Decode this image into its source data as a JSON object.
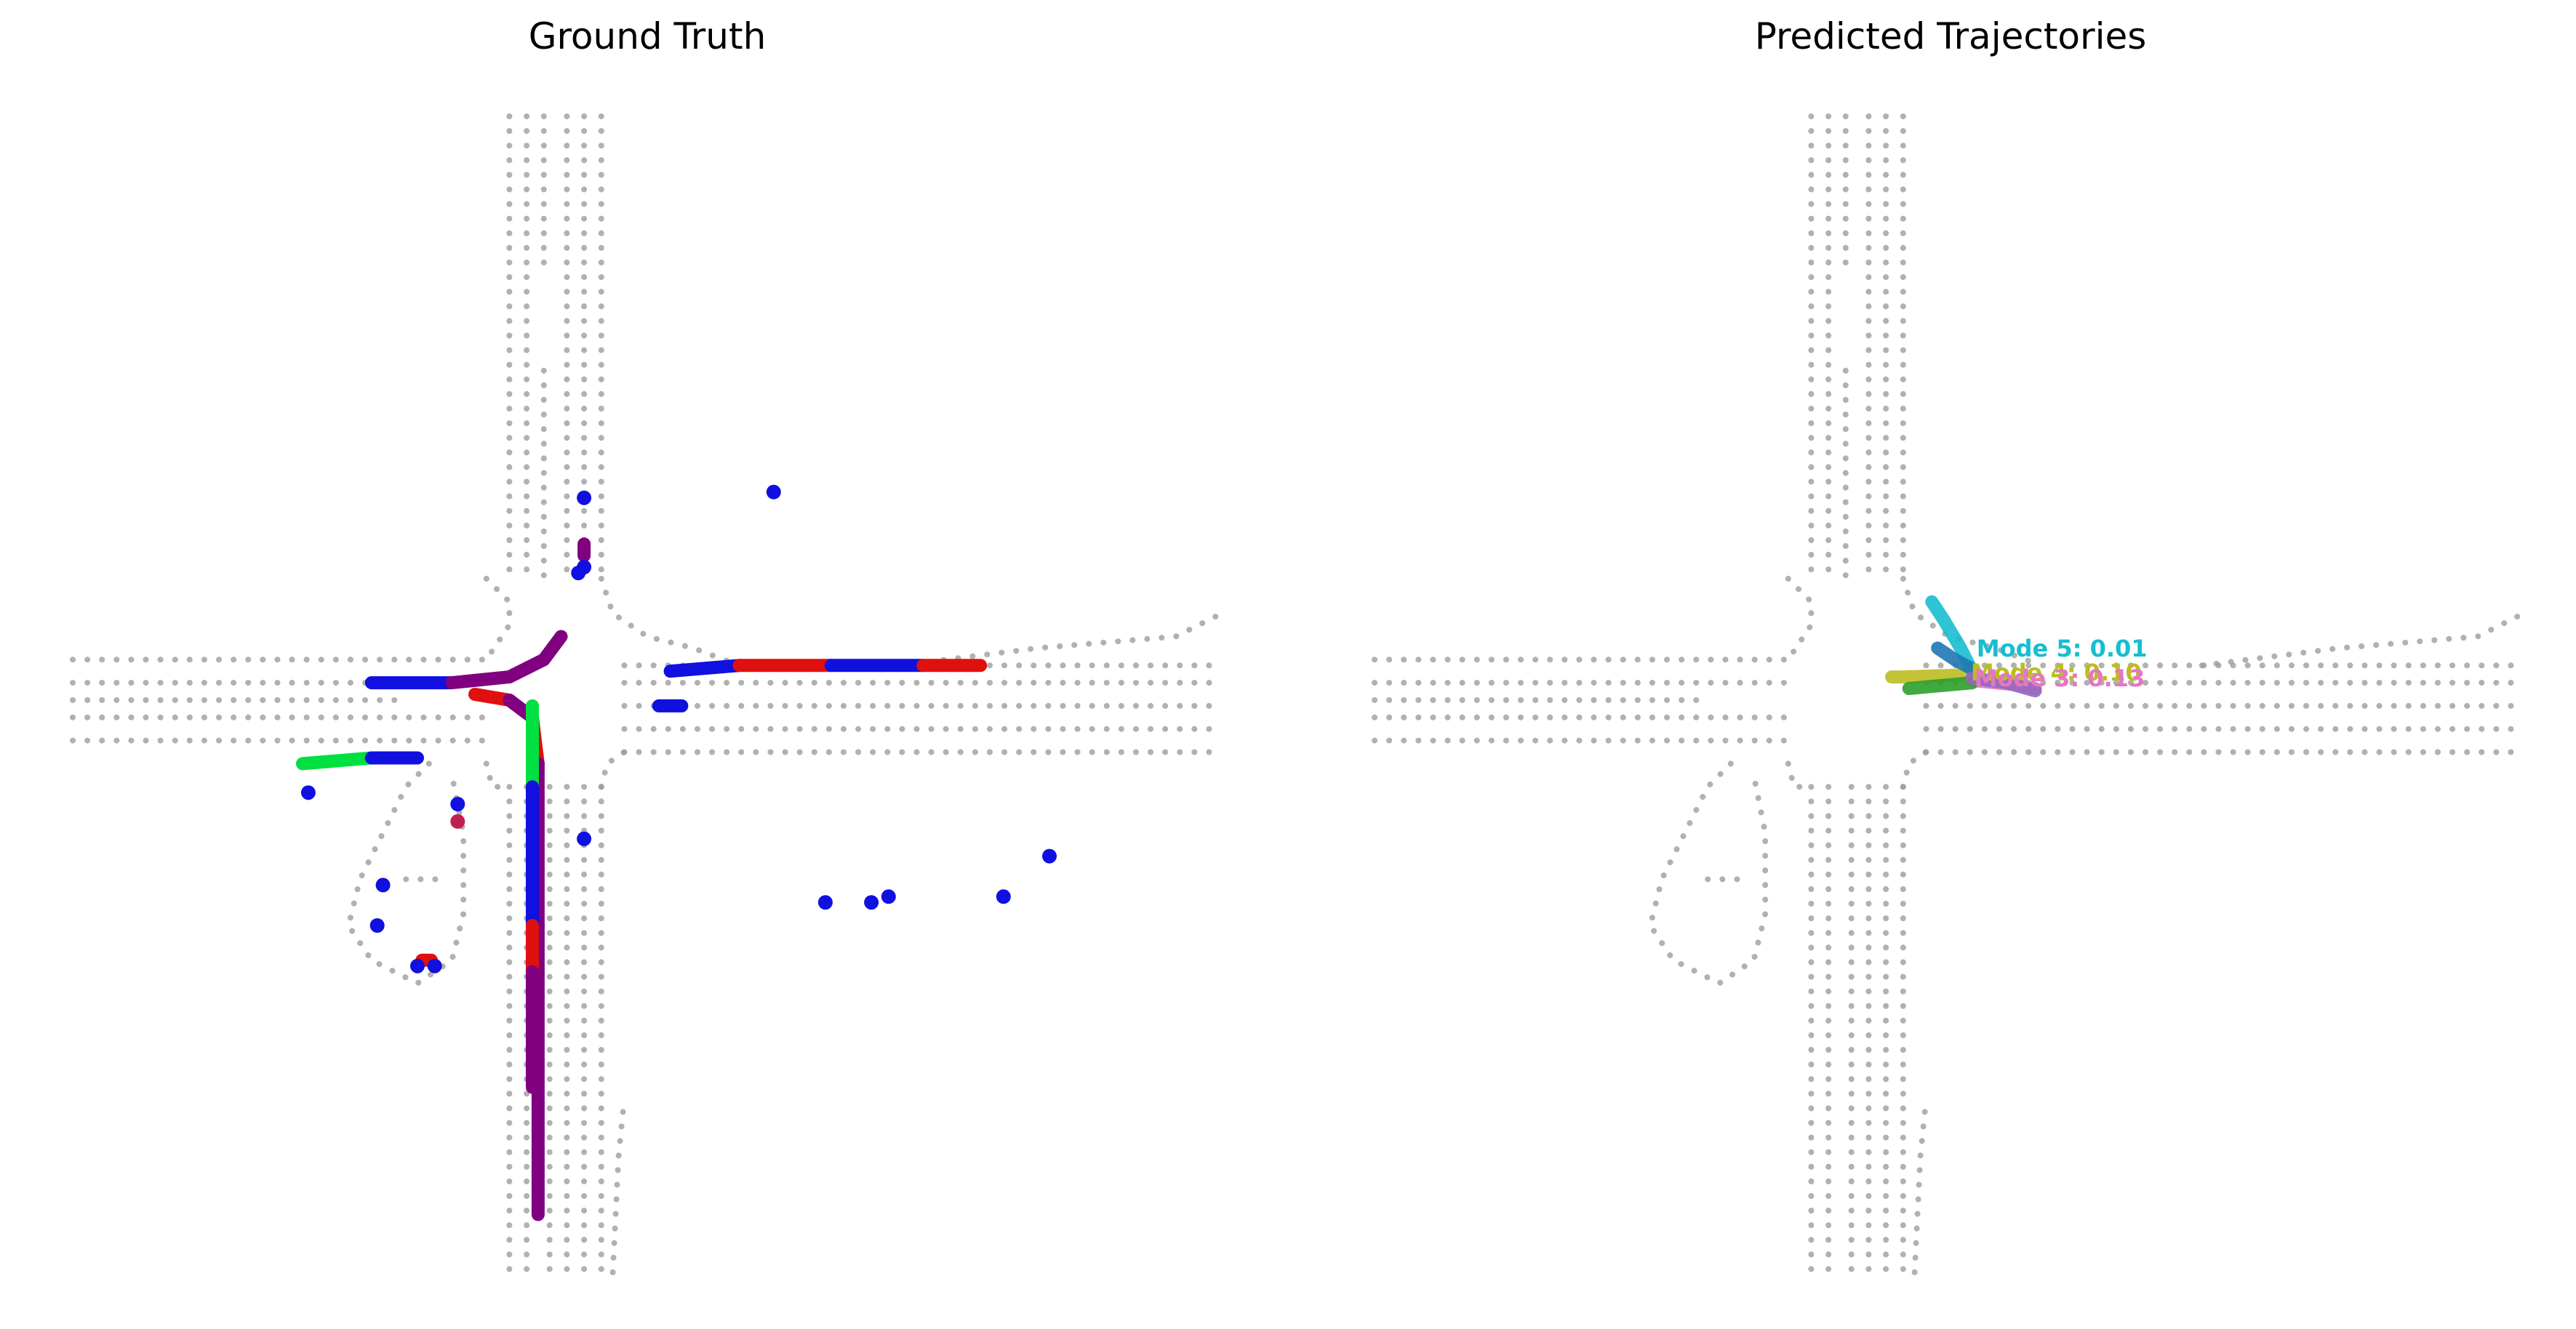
{
  "chart_data": [
    {
      "type": "scatter",
      "title": "Ground Truth",
      "xlabel": "",
      "ylabel": "",
      "axes_visible": false,
      "xlim": [
        0,
        100
      ],
      "ylim": [
        0,
        100
      ],
      "map_color": "#9e9e9e",
      "colormap": [
        "#00e040",
        "#1010e0",
        "#e01010",
        "#800080"
      ],
      "trajectories": [
        {
          "points": [
            [
              26,
              49
            ],
            [
              33,
              49
            ],
            [
              38,
              48.5
            ],
            [
              41,
              47
            ],
            [
              42.5,
              45
            ]
          ],
          "colors": [
            "#1010e0",
            "#800080"
          ]
        },
        {
          "points": [
            [
              35,
              50
            ],
            [
              38,
              50.5
            ],
            [
              40,
              52
            ],
            [
              40.5,
              56
            ],
            [
              40.5,
              70
            ],
            [
              40.5,
              95
            ]
          ],
          "colors": [
            "#e01010",
            "#800080",
            "#e01010",
            "#800080"
          ]
        },
        {
          "points": [
            [
              40,
              51
            ],
            [
              40,
              58
            ],
            [
              40,
              64
            ],
            [
              40,
              70
            ],
            [
              40,
              74
            ],
            [
              40,
              84
            ]
          ],
          "colors": [
            "#00e040",
            "#1010e0",
            "#1010e0",
            "#e01010",
            "#800080"
          ]
        },
        {
          "points": [
            [
              20,
              56
            ],
            [
              26,
              55.5
            ],
            [
              30,
              55.5
            ]
          ],
          "colors": [
            "#00e040",
            "#1010e0",
            "#e01010",
            "#1010e0"
          ]
        },
        {
          "points": [
            [
              52,
              48
            ],
            [
              58,
              47.5
            ],
            [
              66,
              47.5
            ],
            [
              74,
              47.5
            ],
            [
              79,
              47.5
            ]
          ],
          "colors": [
            "#1010e0",
            "#e01010",
            "#1010e0",
            "#e01010",
            "#00e040"
          ]
        },
        {
          "points": [
            [
              51,
              51
            ],
            [
              53,
              51
            ]
          ],
          "colors": [
            "#1010e0",
            "#00e040"
          ]
        },
        {
          "points": [
            [
              44.5,
              37
            ],
            [
              44.5,
              38
            ]
          ],
          "colors": [
            "#800080",
            "#800080"
          ]
        },
        {
          "points": [
            [
              30.4,
              73
            ],
            [
              31.2,
              73
            ]
          ],
          "colors": [
            "#e01010",
            "#00e040"
          ]
        }
      ],
      "points": [
        {
          "x": 44.5,
          "y": 33,
          "color": "#1010e0"
        },
        {
          "x": 61,
          "y": 32.5,
          "color": "#1010e0"
        },
        {
          "x": 44,
          "y": 39.5,
          "color": "#1010e0"
        },
        {
          "x": 44.5,
          "y": 39,
          "color": "#1010e0"
        },
        {
          "x": 20.5,
          "y": 58.5,
          "color": "#1010e0"
        },
        {
          "x": 33.5,
          "y": 59.5,
          "color": "#1010e0"
        },
        {
          "x": 33.5,
          "y": 61,
          "color": "#c02050"
        },
        {
          "x": 44.5,
          "y": 62.5,
          "color": "#1010e0"
        },
        {
          "x": 27,
          "y": 66.5,
          "color": "#1010e0"
        },
        {
          "x": 26.5,
          "y": 70,
          "color": "#1010e0"
        },
        {
          "x": 30,
          "y": 73.5,
          "color": "#1010e0"
        },
        {
          "x": 31.5,
          "y": 73.5,
          "color": "#1010e0"
        },
        {
          "x": 65.5,
          "y": 68,
          "color": "#1010e0"
        },
        {
          "x": 69.5,
          "y": 68,
          "color": "#1010e0"
        },
        {
          "x": 71,
          "y": 67.5,
          "color": "#1010e0"
        },
        {
          "x": 81,
          "y": 67.5,
          "color": "#1010e0"
        },
        {
          "x": 85,
          "y": 64,
          "color": "#1010e0"
        }
      ]
    },
    {
      "type": "line",
      "title": "Predicted Trajectories",
      "xlabel": "",
      "ylabel": "",
      "axes_visible": false,
      "xlim": [
        0,
        100
      ],
      "ylim": [
        0,
        100
      ],
      "map_color": "#9e9e9e",
      "modes": [
        {
          "label": "Mode 5: 0.01",
          "color": "#17becf",
          "points": [
            [
              52,
              48
            ],
            [
              51,
              46
            ],
            [
              49.5,
              43.5
            ],
            [
              48.5,
              42
            ]
          ]
        },
        {
          "label": "Mode 4: 0.10",
          "color": "#bcbd22",
          "points": [
            [
              52,
              48.3
            ],
            [
              46,
              48.5
            ],
            [
              45,
              48.5
            ]
          ]
        },
        {
          "label": "Mode 3: 0.13",
          "color": "#e377c2",
          "points": [
            [
              52,
              48.8
            ],
            [
              56,
              49.2
            ],
            [
              57.5,
              49.5
            ]
          ]
        },
        {
          "label": "",
          "color": "#1f77b4",
          "points": [
            [
              52,
              47.8
            ],
            [
              50.5,
              47
            ],
            [
              49,
              46
            ]
          ]
        },
        {
          "label": "",
          "color": "#2ca02c",
          "points": [
            [
              52,
              49
            ],
            [
              46.5,
              49.5
            ]
          ]
        },
        {
          "label": "",
          "color": "#9467bd",
          "points": [
            [
              52,
              48.6
            ],
            [
              55,
              49
            ],
            [
              57.5,
              49.7
            ]
          ]
        }
      ]
    }
  ]
}
